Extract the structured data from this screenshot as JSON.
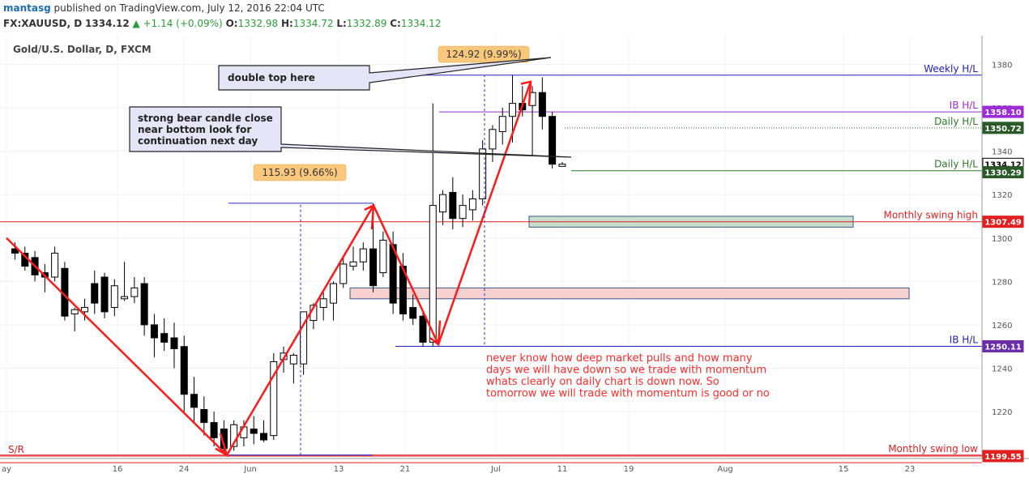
{
  "header": {
    "user": "mantasg",
    "published": "published on TradingView.com, July 12, 2016 22:04 UTC",
    "symbol": "FX:XAUUSD, D",
    "last": "1334.12",
    "change": "+1.14 (+0.09%)",
    "o_label": "O:",
    "o": "1332.98",
    "h_label": "H:",
    "h": "1334.72",
    "l_label": "L:",
    "l": "1332.89",
    "c_label": "C:",
    "c": "1334.12"
  },
  "chart_title": "Gold/U.S. Dollar, D, FXCM",
  "colors": {
    "bull": "#ffffff",
    "bear": "#000000",
    "red": "#ff0000",
    "blue": "#2020c0",
    "purple": "#9d2bd6",
    "green_line": "#2a7a2a",
    "axis_text": "#555555"
  },
  "chart_data": {
    "type": "candlestick",
    "symbol": "XAUUSD",
    "timeframe": "D",
    "ylim": [
      1196,
      1384
    ],
    "y_ticks": [
      1200,
      1220,
      1240,
      1260,
      1280,
      1300,
      1320,
      1340,
      1360,
      1380
    ],
    "x_ticks": [
      "ay",
      "16",
      "24",
      "Jun",
      "13",
      "21",
      "Jul",
      "11",
      "19",
      "Aug",
      "15",
      "23"
    ],
    "candles": [
      {
        "o": 1295,
        "h": 1298,
        "l": 1290,
        "c": 1293
      },
      {
        "o": 1293,
        "h": 1296,
        "l": 1285,
        "c": 1287
      },
      {
        "o": 1291,
        "h": 1294,
        "l": 1280,
        "c": 1283
      },
      {
        "o": 1284,
        "h": 1288,
        "l": 1275,
        "c": 1282
      },
      {
        "o": 1282,
        "h": 1296,
        "l": 1280,
        "c": 1293
      },
      {
        "o": 1286,
        "h": 1289,
        "l": 1262,
        "c": 1264
      },
      {
        "o": 1265,
        "h": 1268,
        "l": 1257,
        "c": 1267
      },
      {
        "o": 1266,
        "h": 1272,
        "l": 1262,
        "c": 1268
      },
      {
        "o": 1279,
        "h": 1285,
        "l": 1265,
        "c": 1270
      },
      {
        "o": 1282,
        "h": 1284,
        "l": 1263,
        "c": 1266
      },
      {
        "o": 1268,
        "h": 1281,
        "l": 1264,
        "c": 1278
      },
      {
        "o": 1272,
        "h": 1289,
        "l": 1271,
        "c": 1273
      },
      {
        "o": 1273,
        "h": 1282,
        "l": 1270,
        "c": 1277
      },
      {
        "o": 1279,
        "h": 1282,
        "l": 1255,
        "c": 1260
      },
      {
        "o": 1260,
        "h": 1265,
        "l": 1245,
        "c": 1254
      },
      {
        "o": 1256,
        "h": 1263,
        "l": 1248,
        "c": 1252
      },
      {
        "o": 1254,
        "h": 1261,
        "l": 1240,
        "c": 1249
      },
      {
        "o": 1250,
        "h": 1255,
        "l": 1220,
        "c": 1228
      },
      {
        "o": 1228,
        "h": 1236,
        "l": 1215,
        "c": 1222
      },
      {
        "o": 1221,
        "h": 1227,
        "l": 1209,
        "c": 1215
      },
      {
        "o": 1215,
        "h": 1220,
        "l": 1204,
        "c": 1208
      },
      {
        "o": 1212,
        "h": 1216,
        "l": 1201,
        "c": 1203
      },
      {
        "o": 1204,
        "h": 1216,
        "l": 1202,
        "c": 1214
      },
      {
        "o": 1208,
        "h": 1216,
        "l": 1204,
        "c": 1213
      },
      {
        "o": 1212,
        "h": 1218,
        "l": 1205,
        "c": 1210
      },
      {
        "o": 1210,
        "h": 1216,
        "l": 1206,
        "c": 1207
      },
      {
        "o": 1209,
        "h": 1247,
        "l": 1207,
        "c": 1243
      },
      {
        "o": 1244,
        "h": 1250,
        "l": 1238,
        "c": 1247
      },
      {
        "o": 1242,
        "h": 1247,
        "l": 1233,
        "c": 1246
      },
      {
        "o": 1242,
        "h": 1266,
        "l": 1237,
        "c": 1266
      },
      {
        "o": 1262,
        "h": 1270,
        "l": 1258,
        "c": 1269
      },
      {
        "o": 1268,
        "h": 1275,
        "l": 1262,
        "c": 1272
      },
      {
        "o": 1270,
        "h": 1280,
        "l": 1262,
        "c": 1279
      },
      {
        "o": 1279,
        "h": 1292,
        "l": 1277,
        "c": 1288
      },
      {
        "o": 1287,
        "h": 1296,
        "l": 1285,
        "c": 1289
      },
      {
        "o": 1289,
        "h": 1298,
        "l": 1285,
        "c": 1295
      },
      {
        "o": 1295,
        "h": 1316,
        "l": 1275,
        "c": 1278
      },
      {
        "o": 1284,
        "h": 1303,
        "l": 1282,
        "c": 1299
      },
      {
        "o": 1297,
        "h": 1303,
        "l": 1265,
        "c": 1270
      },
      {
        "o": 1287,
        "h": 1293,
        "l": 1262,
        "c": 1265
      },
      {
        "o": 1268,
        "h": 1274,
        "l": 1260,
        "c": 1263
      },
      {
        "o": 1264,
        "h": 1266,
        "l": 1250,
        "c": 1252
      },
      {
        "o": 1252,
        "h": 1362,
        "l": 1250,
        "c": 1315
      },
      {
        "o": 1312,
        "h": 1322,
        "l": 1306,
        "c": 1320
      },
      {
        "o": 1321,
        "h": 1328,
        "l": 1304,
        "c": 1309
      },
      {
        "o": 1309,
        "h": 1320,
        "l": 1305,
        "c": 1315
      },
      {
        "o": 1313,
        "h": 1322,
        "l": 1308,
        "c": 1318
      },
      {
        "o": 1318,
        "h": 1345,
        "l": 1315,
        "c": 1341
      },
      {
        "o": 1341,
        "h": 1352,
        "l": 1335,
        "c": 1350
      },
      {
        "o": 1349,
        "h": 1360,
        "l": 1343,
        "c": 1356
      },
      {
        "o": 1356,
        "h": 1375,
        "l": 1344,
        "c": 1362
      },
      {
        "o": 1362,
        "h": 1370,
        "l": 1356,
        "c": 1359
      },
      {
        "o": 1361,
        "h": 1370,
        "l": 1338,
        "c": 1367
      },
      {
        "o": 1367,
        "h": 1374,
        "l": 1350,
        "c": 1356
      },
      {
        "o": 1356,
        "h": 1358,
        "l": 1332,
        "c": 1334
      },
      {
        "o": 1333,
        "h": 1335,
        "l": 1333,
        "c": 1334
      }
    ],
    "price_labels": [
      {
        "text": "1358.10",
        "value": 1358.1,
        "bg": "#9d2bd6"
      },
      {
        "text": "1350.72",
        "value": 1350.72,
        "bg": "#2a5a2a"
      },
      {
        "text": "1334.12",
        "value": 1334.12,
        "bg": "#ffffff",
        "fg": "#000000"
      },
      {
        "text": "1330.29",
        "value": 1330.29,
        "bg": "#2a5a2a"
      },
      {
        "text": "1307.49",
        "value": 1307.49,
        "bg": "#e02020"
      },
      {
        "text": "1250.11",
        "value": 1250.11,
        "bg": "#6b2ea8"
      },
      {
        "text": "1199.55",
        "value": 1199.55,
        "bg": "#e02020"
      }
    ],
    "levels": [
      {
        "label": "Weekly H/L",
        "value": 1375,
        "color": "#2020c0"
      },
      {
        "label": "IB H/L",
        "value": 1358.1,
        "color": "#9d2bd6"
      },
      {
        "label": "Daily H/L",
        "value": 1350.72,
        "color": "#2a7a2a",
        "dotted": true
      },
      {
        "label": "Daily H/L",
        "value": 1331,
        "color": "#2a7a2a"
      },
      {
        "label": "Monthly swing high",
        "value": 1307.49,
        "color": "#e02020"
      },
      {
        "label": "IB H/L",
        "value": 1250.11,
        "color": "#2020c0"
      },
      {
        "label": "Monthly swing low",
        "value": 1200,
        "color": "#e02020"
      },
      {
        "label": "S/R",
        "value": 1199.55,
        "color": "#e02020"
      }
    ],
    "measure_labels": [
      "124.92 (9.99%)",
      "115.93 (9.66%)"
    ],
    "callouts": [
      "double top here",
      "strong bear candle close near bottom look for continuation next day"
    ],
    "note_lines": [
      "never know how deep market pulls and how many",
      "days we will have down so we trade with momentum",
      "whats clearly on daily chart is down now. So",
      "tomorrow we will trade with momentum is good or no"
    ]
  }
}
